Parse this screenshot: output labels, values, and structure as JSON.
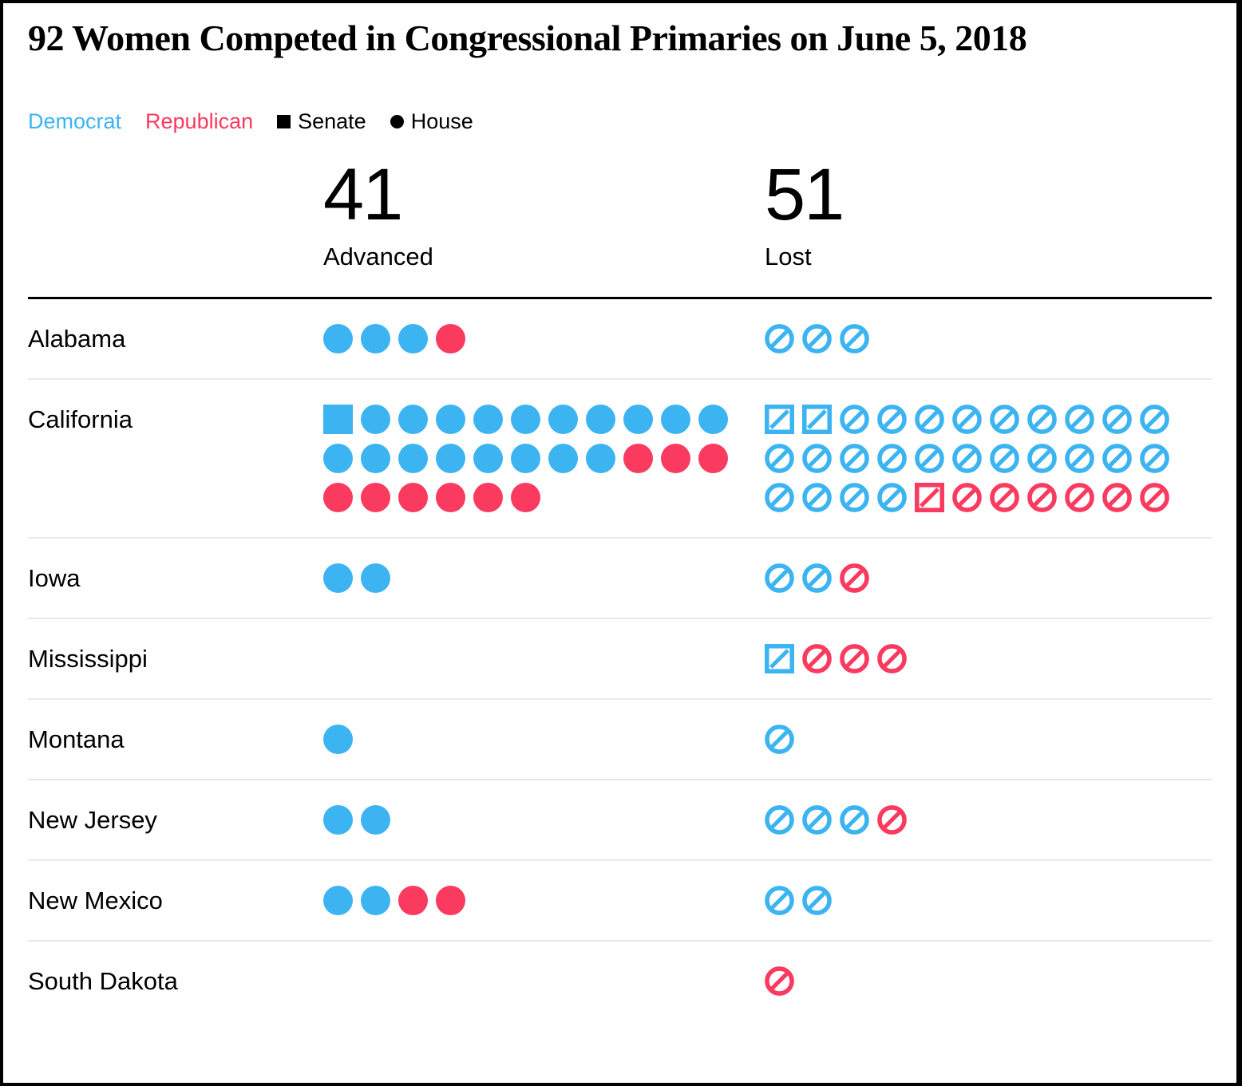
{
  "title": "92 Women Competed in Congressional Primaries on June 5, 2018",
  "legend": {
    "democrat_label": "Democrat",
    "republican_label": "Republican",
    "senate_label": "Senate",
    "house_label": "House"
  },
  "columns": [
    {
      "count": "41",
      "label": "Advanced"
    },
    {
      "count": "51",
      "label": "Lost"
    }
  ],
  "colors": {
    "democrat": "#3db4f2",
    "republican": "#fa3a5e",
    "legend_black": "#000000",
    "rule_black": "#000000",
    "row_divider": "#e9e9e9"
  },
  "chart_data": {
    "type": "pictogram-table",
    "title": "92 Women Competed in Congressional Primaries on June 5, 2018",
    "icon_legend": {
      "shape_square": "Senate",
      "shape_circle": "House",
      "color_blue": "Democrat",
      "color_red": "Republican",
      "filled": "Advanced",
      "slashed_outline": "Lost"
    },
    "token_codes": {
      "DS": "Democrat Senate",
      "DH": "Democrat House",
      "RS": "Republican Senate",
      "RH": "Republican House"
    },
    "totals": {
      "advanced": 41,
      "lost": 51,
      "total": 92
    },
    "states": [
      {
        "name": "Alabama",
        "advanced": [
          "DH",
          "DH",
          "DH",
          "RH"
        ],
        "lost": [
          "DH",
          "DH",
          "DH"
        ]
      },
      {
        "name": "California",
        "advanced": [
          "DS",
          "DH",
          "DH",
          "DH",
          "DH",
          "DH",
          "DH",
          "DH",
          "DH",
          "DH",
          "DH",
          "DH",
          "DH",
          "DH",
          "DH",
          "DH",
          "DH",
          "DH",
          "DH",
          "RH",
          "RH",
          "RH",
          "RH",
          "RH",
          "RH",
          "RH",
          "RH",
          "RH"
        ],
        "lost": [
          "DS",
          "DS",
          "DH",
          "DH",
          "DH",
          "DH",
          "DH",
          "DH",
          "DH",
          "DH",
          "DH",
          "DH",
          "DH",
          "DH",
          "DH",
          "DH",
          "DH",
          "DH",
          "DH",
          "DH",
          "DH",
          "DH",
          "DH",
          "DH",
          "DH",
          "DH",
          "RS",
          "RH",
          "RH",
          "RH",
          "RH",
          "RH",
          "RH"
        ]
      },
      {
        "name": "Iowa",
        "advanced": [
          "DH",
          "DH"
        ],
        "lost": [
          "DH",
          "DH",
          "RH"
        ]
      },
      {
        "name": "Mississippi",
        "advanced": [],
        "lost": [
          "DS",
          "RH",
          "RH",
          "RH"
        ]
      },
      {
        "name": "Montana",
        "advanced": [
          "DH"
        ],
        "lost": [
          "DH"
        ]
      },
      {
        "name": "New Jersey",
        "advanced": [
          "DH",
          "DH"
        ],
        "lost": [
          "DH",
          "DH",
          "DH",
          "RH"
        ]
      },
      {
        "name": "New Mexico",
        "advanced": [
          "DH",
          "DH",
          "RH",
          "RH"
        ],
        "lost": [
          "DH",
          "DH"
        ]
      },
      {
        "name": "South Dakota",
        "advanced": [],
        "lost": [
          "RH"
        ]
      }
    ]
  }
}
